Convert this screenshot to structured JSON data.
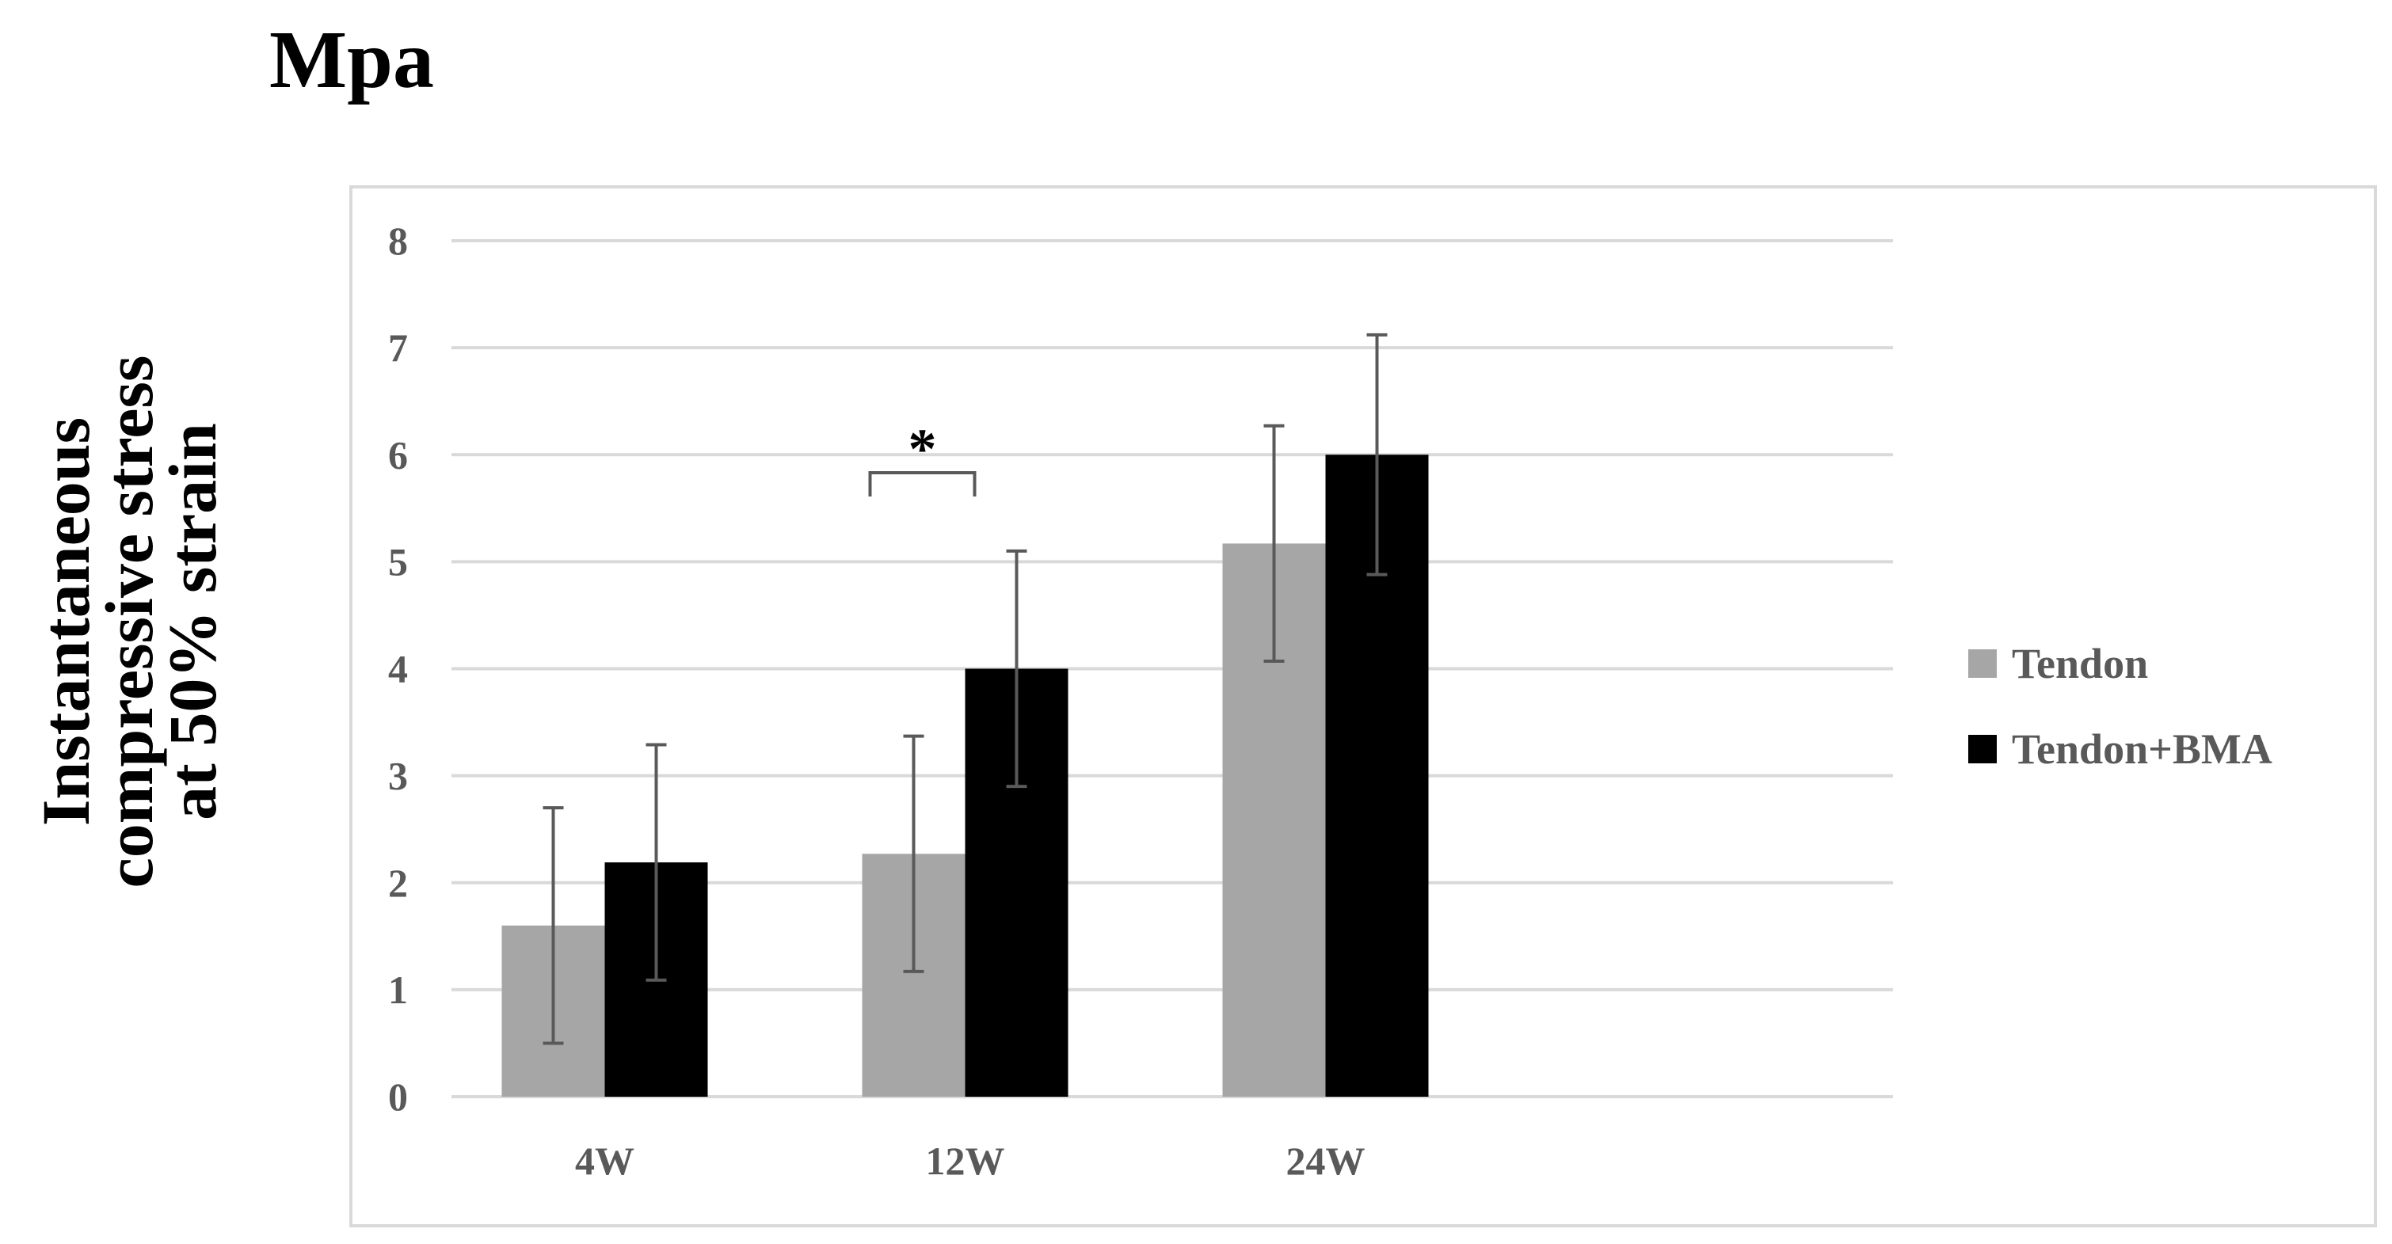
{
  "chart_data": {
    "type": "bar",
    "unit_label": "Mpa",
    "ylabel_lines": [
      "Instantaneous",
      "compressive stress",
      "at 50% strain"
    ],
    "categories": [
      "4W",
      "12W",
      "24W"
    ],
    "ylim": [
      0,
      8
    ],
    "yticks": [
      "0",
      "1",
      "2",
      "3",
      "4",
      "5",
      "6",
      "7",
      "8"
    ],
    "grid": true,
    "legend_position": "right",
    "series": [
      {
        "name": "Tendon",
        "color": "#a6a6a6",
        "values": [
          1.6,
          2.27,
          5.17
        ],
        "errors": [
          1.1,
          1.1,
          1.1
        ]
      },
      {
        "name": "Tendon+BMA",
        "color": "#000000",
        "values": [
          2.19,
          4.0,
          6.0
        ],
        "errors": [
          1.1,
          1.1,
          1.12
        ]
      }
    ],
    "annotations": [
      {
        "text": "*",
        "category": "12W",
        "between_series": [
          "Tendon",
          "Tendon+BMA"
        ]
      }
    ]
  }
}
